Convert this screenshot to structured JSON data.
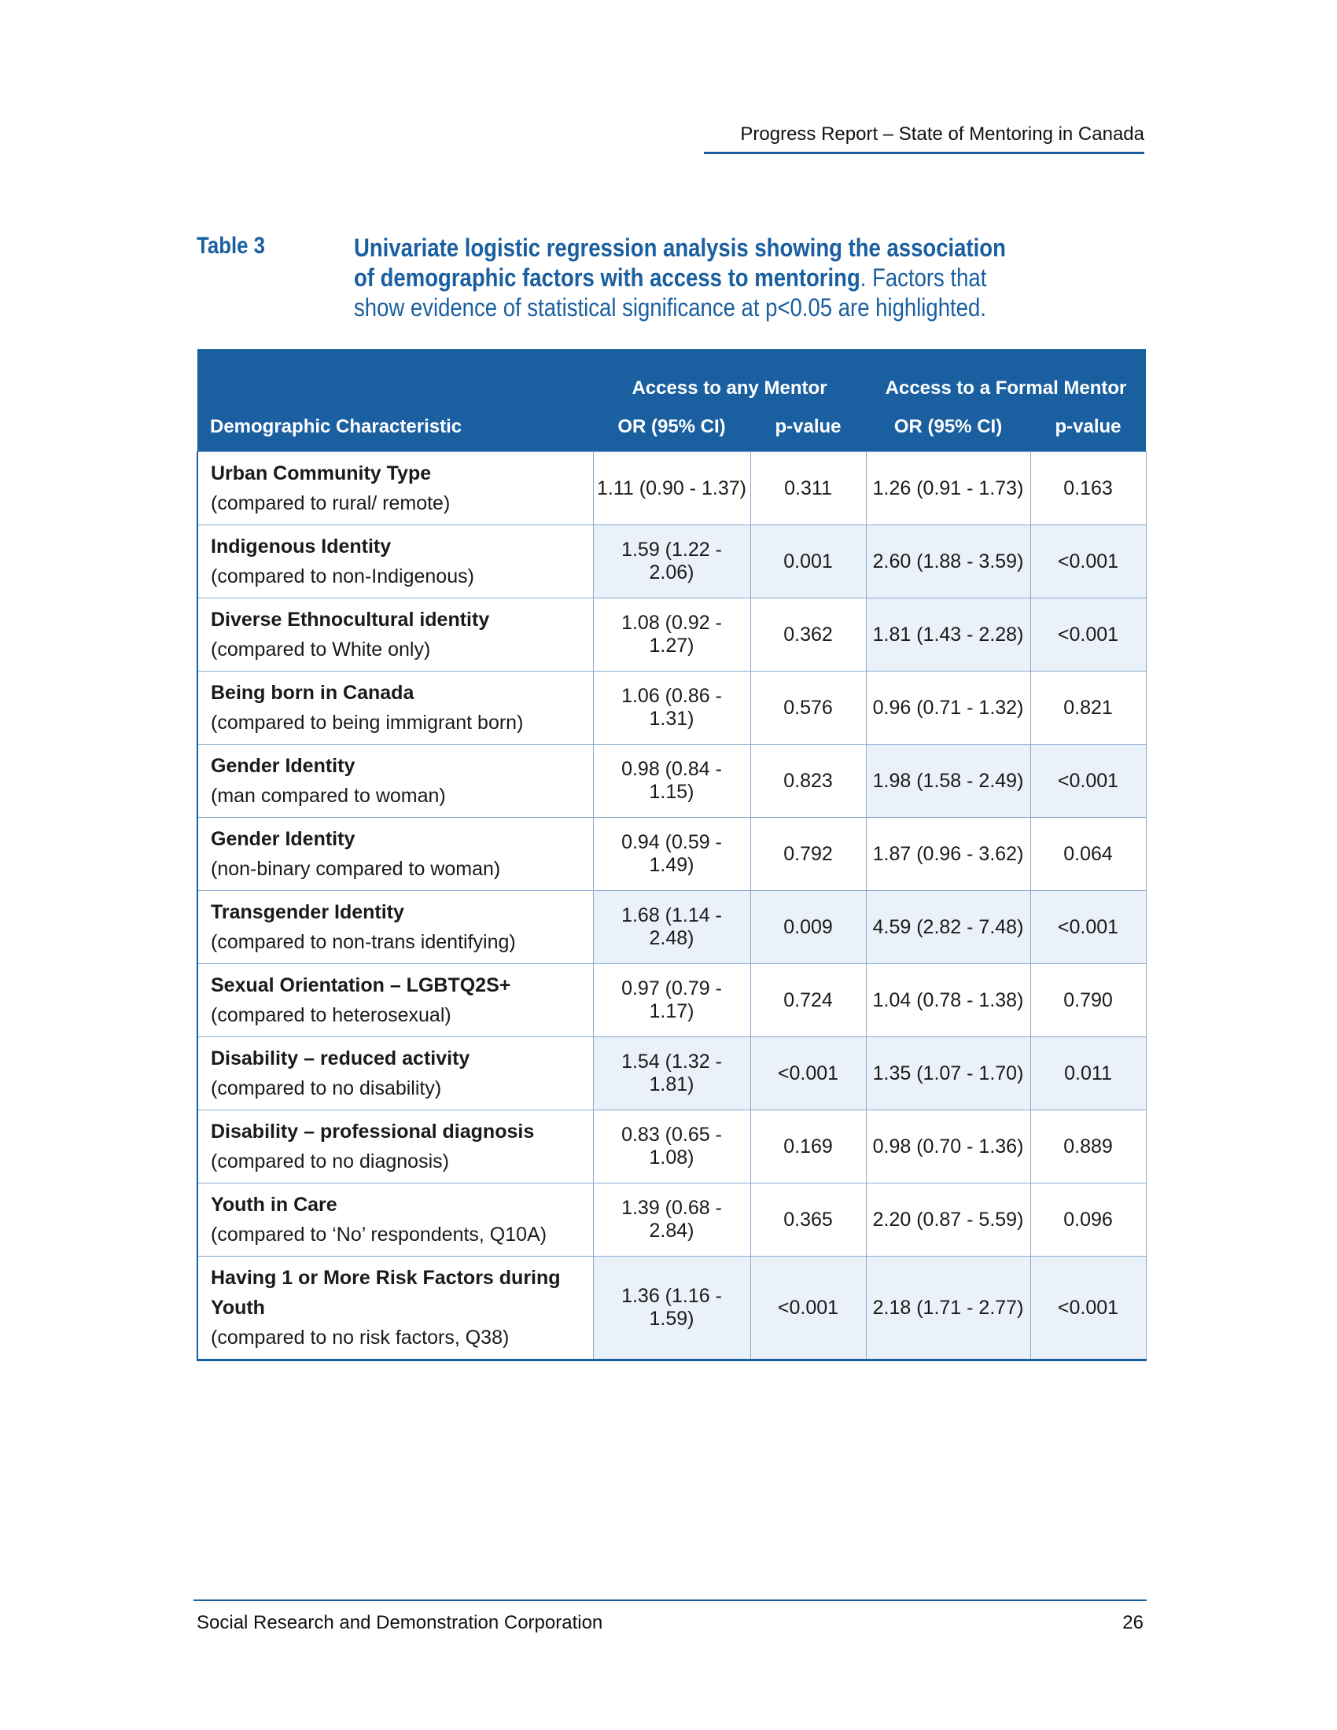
{
  "header": {
    "title": "Progress Report – State of Mentoring in Canada"
  },
  "caption": {
    "label": "Table 3",
    "bold": "Univariate logistic regression analysis showing the association of demographic factors with access to mentoring",
    "rest": ". Factors that show evidence of statistical significance at p<0.05 are highlighted."
  },
  "table": {
    "group_any": "Access to any Mentor",
    "group_formal": "Access to a Formal Mentor",
    "col_characteristic": "Demographic Characteristic",
    "col_or": "OR (95% CI)",
    "col_p": "p-value",
    "rows": [
      {
        "name": "Urban Community Type",
        "note": "(compared to rural/ remote)",
        "any_or": "1.11 (0.90 - 1.37)",
        "any_p": "0.311",
        "formal_or": "1.26 (0.91 - 1.73)",
        "formal_p": "0.163",
        "hl_any": false,
        "hl_formal": false
      },
      {
        "name": "Indigenous Identity",
        "note": "(compared to non-Indigenous)",
        "any_or": "1.59 (1.22 - 2.06)",
        "any_p": "0.001",
        "formal_or": "2.60 (1.88 - 3.59)",
        "formal_p": "<0.001",
        "hl_any": true,
        "hl_formal": true
      },
      {
        "name": "Diverse Ethnocultural identity",
        "note": "(compared to White only)",
        "any_or": "1.08 (0.92 - 1.27)",
        "any_p": "0.362",
        "formal_or": "1.81 (1.43 - 2.28)",
        "formal_p": "<0.001",
        "hl_any": false,
        "hl_formal": true
      },
      {
        "name": "Being born in Canada",
        "note": "(compared to being immigrant born)",
        "any_or": "1.06 (0.86 - 1.31)",
        "any_p": "0.576",
        "formal_or": "0.96 (0.71 - 1.32)",
        "formal_p": "0.821",
        "hl_any": false,
        "hl_formal": false
      },
      {
        "name": "Gender Identity",
        "note": "(man compared to woman)",
        "any_or": "0.98 (0.84 - 1.15)",
        "any_p": "0.823",
        "formal_or": "1.98 (1.58 - 2.49)",
        "formal_p": "<0.001",
        "hl_any": false,
        "hl_formal": true
      },
      {
        "name": "Gender Identity",
        "note": "(non-binary compared to woman)",
        "any_or": "0.94 (0.59 - 1.49)",
        "any_p": "0.792",
        "formal_or": "1.87 (0.96 - 3.62)",
        "formal_p": "0.064",
        "hl_any": false,
        "hl_formal": false
      },
      {
        "name": "Transgender Identity",
        "note": "(compared to non-trans identifying)",
        "any_or": "1.68 (1.14 - 2.48)",
        "any_p": "0.009",
        "formal_or": "4.59 (2.82 - 7.48)",
        "formal_p": "<0.001",
        "hl_any": true,
        "hl_formal": true
      },
      {
        "name": "Sexual Orientation – LGBTQ2S+",
        "note": "(compared to heterosexual)",
        "any_or": "0.97 (0.79 - 1.17)",
        "any_p": "0.724",
        "formal_or": "1.04 (0.78 - 1.38)",
        "formal_p": "0.790",
        "hl_any": false,
        "hl_formal": false
      },
      {
        "name": "Disability – reduced activity",
        "note": "(compared to no disability)",
        "any_or": "1.54 (1.32 - 1.81)",
        "any_p": "<0.001",
        "formal_or": "1.35 (1.07 - 1.70)",
        "formal_p": "0.011",
        "hl_any": true,
        "hl_formal": true
      },
      {
        "name": "Disability – professional diagnosis",
        "note": "(compared to no diagnosis)",
        "any_or": "0.83 (0.65 - 1.08)",
        "any_p": "0.169",
        "formal_or": "0.98 (0.70 - 1.36)",
        "formal_p": "0.889",
        "hl_any": false,
        "hl_formal": false
      },
      {
        "name": "Youth in Care",
        "note": "(compared to ‘No’ respondents, Q10A)",
        "any_or": "1.39 (0.68 - 2.84)",
        "any_p": "0.365",
        "formal_or": "2.20 (0.87 - 5.59)",
        "formal_p": "0.096",
        "hl_any": false,
        "hl_formal": false
      },
      {
        "name": "Having 1 or More Risk Factors during Youth",
        "note": "(compared to no risk factors, Q38)",
        "any_or": "1.36 (1.16 - 1.59)",
        "any_p": "<0.001",
        "formal_or": "2.18 (1.71 - 2.77)",
        "formal_p": "<0.001",
        "hl_any": true,
        "hl_formal": true
      }
    ]
  },
  "footer": {
    "org": "Social Research and Demonstration Corporation",
    "page": "26"
  }
}
